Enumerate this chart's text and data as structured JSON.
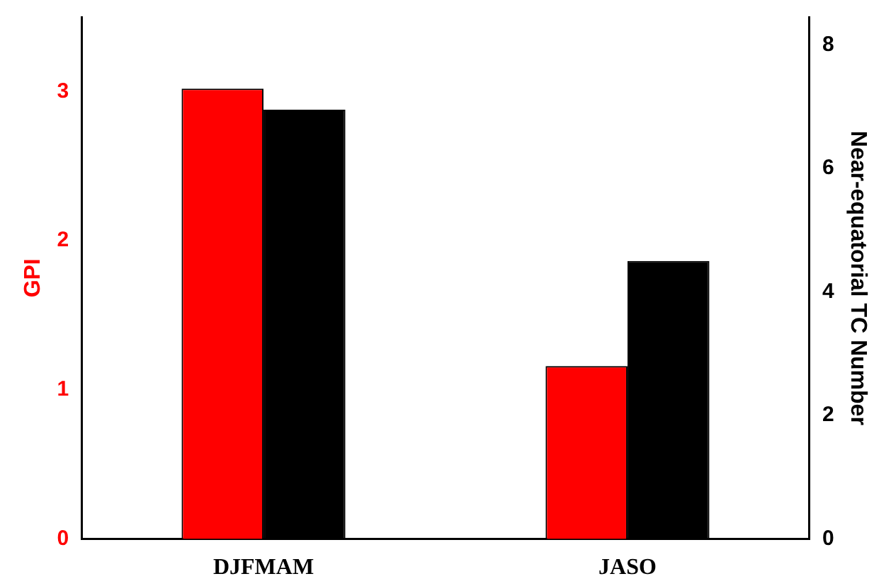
{
  "chart_data": {
    "type": "bar",
    "ylabel": "GPI",
    "y2label": "Near-equatorial TC Number",
    "categories": [
      "DJFMAM",
      "JASO"
    ],
    "series": [
      {
        "color": "#ff0000",
        "values": [
          3.02,
          1.16
        ],
        "axis": "y"
      },
      {
        "color": "#000000",
        "values": [
          6.95,
          4.5
        ],
        "axis": "y2"
      }
    ],
    "ylim": [
      0,
      3.5
    ],
    "yticks": [
      0,
      1,
      2,
      3
    ],
    "y2lim": [
      0,
      8.45
    ],
    "y2ticks": [
      0,
      2,
      4,
      6,
      8
    ],
    "grid": false,
    "legend": false
  }
}
